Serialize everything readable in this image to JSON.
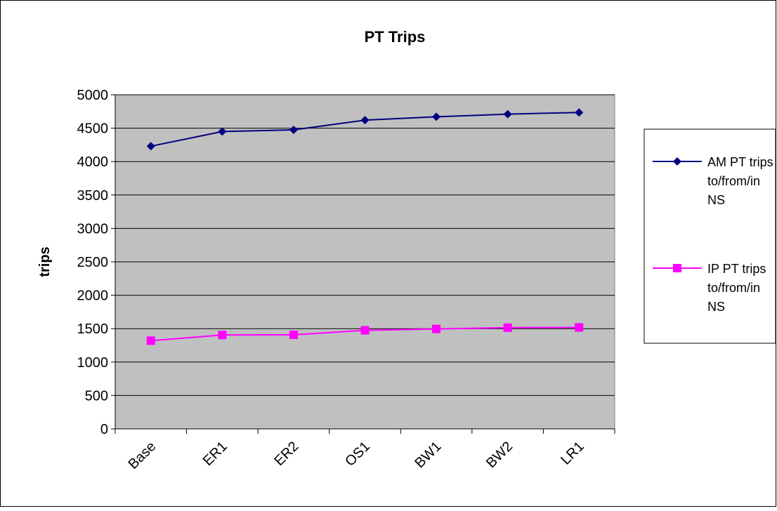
{
  "chart_data": {
    "type": "line",
    "title": "PT Trips",
    "xlabel": "",
    "ylabel": "trips",
    "ylim": [
      0,
      5000
    ],
    "ytick_step": 500,
    "yticks": [
      "0",
      "500",
      "1000",
      "1500",
      "2000",
      "2500",
      "3000",
      "3500",
      "4000",
      "4500",
      "5000"
    ],
    "categories": [
      "Base",
      "ER1",
      "ER2",
      "OS1",
      "BW1",
      "BW2",
      "LR1"
    ],
    "grid": true,
    "plot_background": "#c0c0c0",
    "legend_position": "right",
    "series": [
      {
        "name": "AM PT trips to/from/in NS",
        "legend_lines": [
          "AM PT trips",
          "to/from/in",
          "NS"
        ],
        "color": "#000080",
        "marker": "diamond",
        "values": [
          4230,
          4450,
          4475,
          4620,
          4670,
          4710,
          4735
        ]
      },
      {
        "name": "IP PT trips to/from/in NS",
        "legend_lines": [
          "IP PT trips",
          "to/from/in",
          "NS"
        ],
        "color": "#ff00ff",
        "marker": "square",
        "values": [
          1320,
          1405,
          1408,
          1475,
          1495,
          1515,
          1518
        ]
      }
    ]
  }
}
